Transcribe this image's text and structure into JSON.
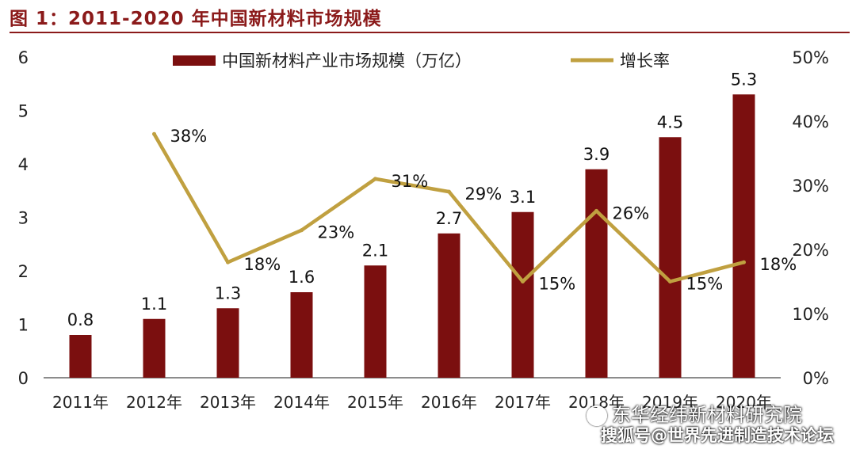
{
  "figure_title": "图 1：2011-2020 年中国新材料市场规模",
  "watermark": {
    "line1": "东华经纬新材料研究院",
    "line2": "搜狐号@世界先进制造技术论坛"
  },
  "chart_data": {
    "type": "bar",
    "title": "图 1：2011-2020 年中国新材料市场规模",
    "categories": [
      "2011年",
      "2012年",
      "2013年",
      "2014年",
      "2015年",
      "2016年",
      "2017年",
      "2018年",
      "2019年",
      "2020年"
    ],
    "series": [
      {
        "name": "中国新材料产业市场规模（万亿）",
        "type": "bar",
        "axis": "left",
        "color": "#7B0F0F",
        "values": [
          0.8,
          1.1,
          1.3,
          1.6,
          2.1,
          2.7,
          3.1,
          3.9,
          4.5,
          5.3
        ],
        "labels": [
          "0.8",
          "1.1",
          "1.3",
          "1.6",
          "2.1",
          "2.7",
          "3.1",
          "3.9",
          "4.5",
          "5.3"
        ]
      },
      {
        "name": "增长率",
        "type": "line",
        "axis": "right",
        "color": "#C0A040",
        "values": [
          null,
          38,
          18,
          23,
          31,
          29,
          15,
          26,
          15,
          18
        ],
        "labels": [
          "",
          "38%",
          "18%",
          "23%",
          "31%",
          "29%",
          "15%",
          "26%",
          "15%",
          "18%"
        ]
      }
    ],
    "y_left": {
      "ylim": [
        0,
        6
      ],
      "ticks": [
        "0",
        "1",
        "2",
        "3",
        "4",
        "5",
        "6"
      ]
    },
    "y_right": {
      "ylim": [
        0,
        50
      ],
      "ticks": [
        "0%",
        "10%",
        "20%",
        "30%",
        "40%",
        "50%"
      ]
    },
    "legend_position": "top",
    "grid": false
  }
}
